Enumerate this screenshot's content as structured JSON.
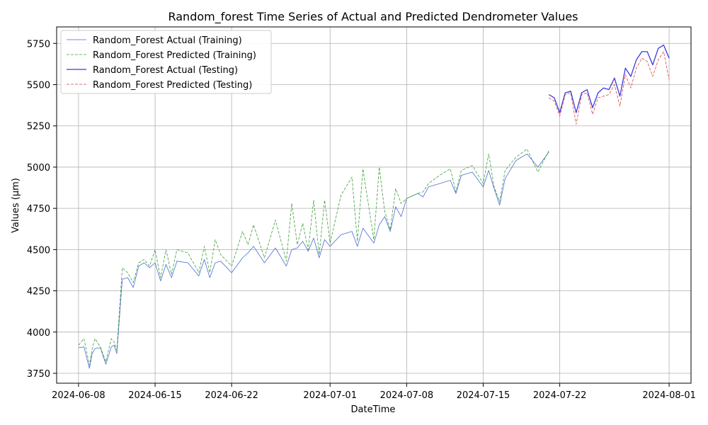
{
  "chart_data": {
    "type": "line",
    "title": "Random_forest Time Series of Actual and Predicted Dendrometer Values",
    "xlabel": "DateTime",
    "ylabel": "Values (µm)",
    "xlim": [
      "2024-06-06",
      "2024-08-03"
    ],
    "ylim": [
      3690,
      5850
    ],
    "grid": true,
    "legend_position": "top-left",
    "x_ticks": [
      "2024-06-08",
      "2024-06-15",
      "2024-06-22",
      "2024-07-01",
      "2024-07-08",
      "2024-07-15",
      "2024-07-22",
      "2024-08-01"
    ],
    "y_ticks": [
      3750,
      4000,
      4250,
      4500,
      4750,
      5000,
      5250,
      5500,
      5750
    ],
    "series": [
      {
        "name": "Random_Forest Actual (Training)",
        "color": "#4a6ad8",
        "style": "solid",
        "width": 0.8,
        "x": [
          "2024-06-08",
          "2024-06-08 12:00",
          "2024-06-09",
          "2024-06-09 06:00",
          "2024-06-09 12:00",
          "2024-06-10",
          "2024-06-10 12:00",
          "2024-06-11",
          "2024-06-11 06:00",
          "2024-06-11 12:00",
          "2024-06-12",
          "2024-06-12 12:00",
          "2024-06-13",
          "2024-06-13 12:00",
          "2024-06-14",
          "2024-06-14 12:00",
          "2024-06-15",
          "2024-06-15 12:00",
          "2024-06-16",
          "2024-06-16 12:00",
          "2024-06-17",
          "2024-06-18",
          "2024-06-19",
          "2024-06-19 12:00",
          "2024-06-20",
          "2024-06-20 12:00",
          "2024-06-21",
          "2024-06-22",
          "2024-06-23",
          "2024-06-23 12:00",
          "2024-06-24",
          "2024-06-25",
          "2024-06-26",
          "2024-06-27",
          "2024-06-27 12:00",
          "2024-06-28",
          "2024-06-28 12:00",
          "2024-06-29",
          "2024-06-29 12:00",
          "2024-06-30",
          "2024-06-30 12:00",
          "2024-07-01",
          "2024-07-02",
          "2024-07-03",
          "2024-07-03 12:00",
          "2024-07-04",
          "2024-07-05",
          "2024-07-05 12:00",
          "2024-07-06",
          "2024-07-06 12:00",
          "2024-07-07",
          "2024-07-07 12:00",
          "2024-07-08",
          "2024-07-09",
          "2024-07-09 12:00",
          "2024-07-10",
          "2024-07-11",
          "2024-07-12",
          "2024-07-12 12:00",
          "2024-07-13",
          "2024-07-14",
          "2024-07-15",
          "2024-07-15 12:00",
          "2024-07-16",
          "2024-07-16 12:00",
          "2024-07-17",
          "2024-07-18",
          "2024-07-19",
          "2024-07-20",
          "2024-07-21"
        ],
        "values": [
          3905,
          3910,
          3780,
          3870,
          3900,
          3905,
          3805,
          3910,
          3920,
          3870,
          4320,
          4330,
          4270,
          4400,
          4420,
          4390,
          4420,
          4310,
          4410,
          4330,
          4430,
          4420,
          4340,
          4440,
          4330,
          4420,
          4430,
          4360,
          4450,
          4480,
          4520,
          4420,
          4510,
          4400,
          4500,
          4510,
          4550,
          4490,
          4570,
          4450,
          4560,
          4520,
          4590,
          4610,
          4520,
          4630,
          4540,
          4650,
          4700,
          4610,
          4760,
          4700,
          4810,
          4840,
          4820,
          4880,
          4900,
          4920,
          4840,
          4950,
          4970,
          4880,
          4980,
          4870,
          4770,
          4930,
          5040,
          5080,
          5000,
          5090
        ]
      },
      {
        "name": "Random_Forest Predicted (Training)",
        "color": "#3ca03c",
        "style": "dashed",
        "width": 0.8,
        "x": [
          "2024-06-08",
          "2024-06-08 12:00",
          "2024-06-09",
          "2024-06-09 06:00",
          "2024-06-09 12:00",
          "2024-06-10",
          "2024-06-10 12:00",
          "2024-06-11",
          "2024-06-11 06:00",
          "2024-06-11 12:00",
          "2024-06-12",
          "2024-06-12 12:00",
          "2024-06-13",
          "2024-06-13 12:00",
          "2024-06-14",
          "2024-06-14 12:00",
          "2024-06-15",
          "2024-06-15 12:00",
          "2024-06-16",
          "2024-06-16 12:00",
          "2024-06-17",
          "2024-06-18",
          "2024-06-19",
          "2024-06-19 12:00",
          "2024-06-20",
          "2024-06-20 12:00",
          "2024-06-21",
          "2024-06-22",
          "2024-06-23",
          "2024-06-23 12:00",
          "2024-06-24",
          "2024-06-25",
          "2024-06-26",
          "2024-06-27",
          "2024-06-27 12:00",
          "2024-06-28",
          "2024-06-28 12:00",
          "2024-06-29",
          "2024-06-29 12:00",
          "2024-06-30",
          "2024-06-30 12:00",
          "2024-07-01",
          "2024-07-02",
          "2024-07-03",
          "2024-07-03 12:00",
          "2024-07-04",
          "2024-07-05",
          "2024-07-05 12:00",
          "2024-07-06",
          "2024-07-06 12:00",
          "2024-07-07",
          "2024-07-07 12:00",
          "2024-07-08",
          "2024-07-09",
          "2024-07-09 12:00",
          "2024-07-10",
          "2024-07-11",
          "2024-07-12",
          "2024-07-12 12:00",
          "2024-07-13",
          "2024-07-14",
          "2024-07-15",
          "2024-07-15 12:00",
          "2024-07-16",
          "2024-07-16 12:00",
          "2024-07-17",
          "2024-07-18",
          "2024-07-19",
          "2024-07-20",
          "2024-07-21"
        ],
        "values": [
          3920,
          3960,
          3800,
          3900,
          3960,
          3910,
          3820,
          3960,
          3940,
          3890,
          4390,
          4360,
          4300,
          4420,
          4440,
          4400,
          4500,
          4330,
          4500,
          4350,
          4500,
          4480,
          4360,
          4520,
          4360,
          4560,
          4470,
          4400,
          4610,
          4530,
          4650,
          4450,
          4680,
          4430,
          4780,
          4530,
          4660,
          4500,
          4800,
          4470,
          4800,
          4540,
          4830,
          4940,
          4550,
          4990,
          4560,
          5000,
          4730,
          4620,
          4870,
          4780,
          4810,
          4840,
          4850,
          4900,
          4950,
          4990,
          4850,
          4980,
          5010,
          4900,
          5080,
          4880,
          4790,
          4980,
          5060,
          5110,
          4970,
          5100
        ]
      },
      {
        "name": "Random_Forest Actual (Testing)",
        "color": "#3a3ae0",
        "style": "solid",
        "width": 1.3,
        "x": [
          "2024-07-21",
          "2024-07-21 12:00",
          "2024-07-22",
          "2024-07-22 12:00",
          "2024-07-23",
          "2024-07-23 12:00",
          "2024-07-24",
          "2024-07-24 12:00",
          "2024-07-25",
          "2024-07-25 12:00",
          "2024-07-26",
          "2024-07-26 12:00",
          "2024-07-27",
          "2024-07-27 12:00",
          "2024-07-28",
          "2024-07-28 12:00",
          "2024-07-29",
          "2024-07-29 12:00",
          "2024-07-30",
          "2024-07-30 12:00",
          "2024-07-31",
          "2024-07-31 12:00",
          "2024-08-01"
        ],
        "values": [
          5440,
          5420,
          5330,
          5450,
          5460,
          5330,
          5450,
          5470,
          5360,
          5450,
          5480,
          5470,
          5540,
          5430,
          5600,
          5550,
          5650,
          5700,
          5700,
          5620,
          5720,
          5740,
          5660
        ]
      },
      {
        "name": "Random_Forest Predicted (Testing)",
        "color": "#e04040",
        "style": "dashed",
        "width": 0.8,
        "x": [
          "2024-07-21",
          "2024-07-21 12:00",
          "2024-07-22",
          "2024-07-22 12:00",
          "2024-07-23",
          "2024-07-23 12:00",
          "2024-07-24",
          "2024-07-24 12:00",
          "2024-07-25",
          "2024-07-25 12:00",
          "2024-07-26",
          "2024-07-26 12:00",
          "2024-07-27",
          "2024-07-27 12:00",
          "2024-07-28",
          "2024-07-28 12:00",
          "2024-07-29",
          "2024-07-29 12:00",
          "2024-07-30",
          "2024-07-30 12:00",
          "2024-07-31",
          "2024-07-31 12:00",
          "2024-08-01"
        ],
        "values": [
          5420,
          5400,
          5310,
          5440,
          5450,
          5260,
          5440,
          5450,
          5320,
          5420,
          5430,
          5440,
          5500,
          5370,
          5560,
          5480,
          5600,
          5660,
          5640,
          5550,
          5650,
          5700,
          5530
        ]
      }
    ]
  }
}
